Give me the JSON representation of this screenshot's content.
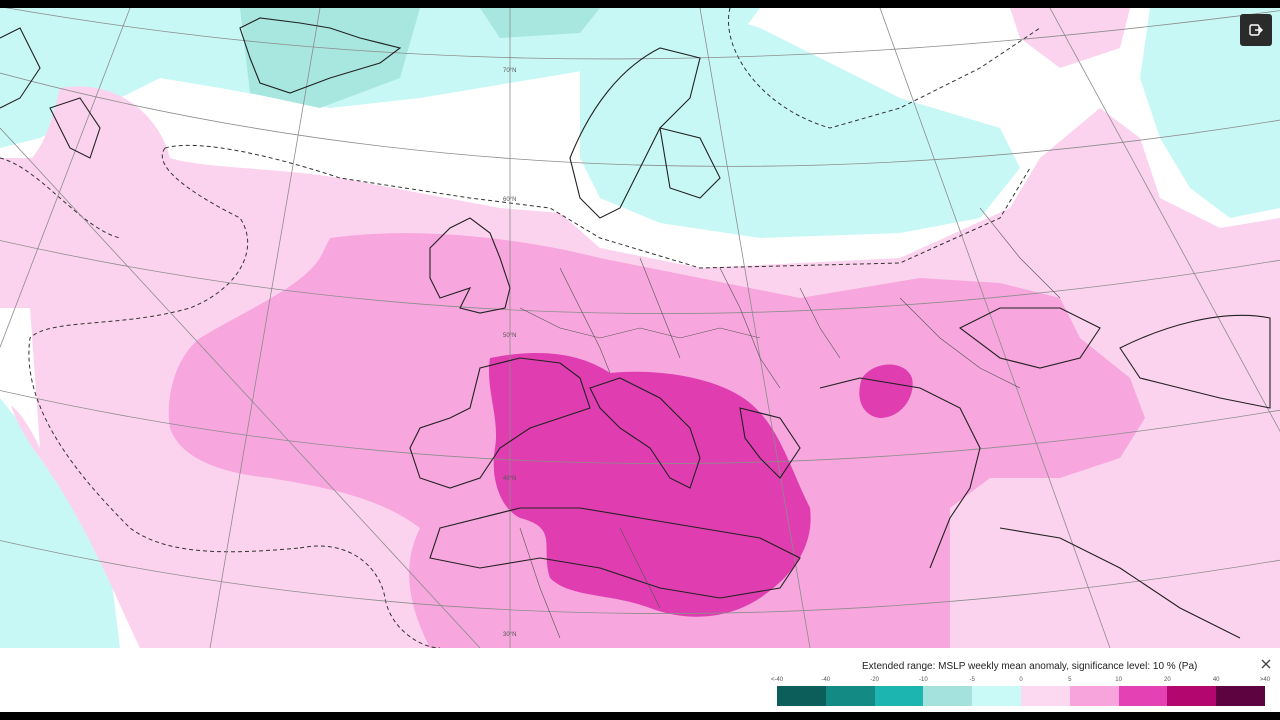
{
  "map": {
    "latitude_labels": [
      "70°N",
      "60°N",
      "50°N",
      "40°N",
      "30°N"
    ],
    "layers": {
      "strong_positive_color": "#e03db0",
      "positive_color": "#f7a6de",
      "weak_positive_color": "#fcd3ee",
      "weak_negative_color": "#c7f8f6",
      "negative_color": "#a8e6e0",
      "neutral_color": "#ffffff"
    },
    "export_icon": "export-icon"
  },
  "legend": {
    "title": "Extended range: MSLP weekly mean anomaly, significance level: 10 % (Pa)",
    "close_icon": "close-icon",
    "tick_labels": [
      "<-40",
      "-40",
      "-20",
      "-10",
      "-5",
      "0",
      "5",
      "10",
      "20",
      "40",
      ">40"
    ],
    "swatch_colors": [
      "#0b5e59",
      "#138a84",
      "#1db5af",
      "#a4e3dd",
      "#c9faf8",
      "#fcd9f0",
      "#f8a4dc",
      "#e441b4",
      "#b3076f",
      "#5c0340"
    ]
  }
}
